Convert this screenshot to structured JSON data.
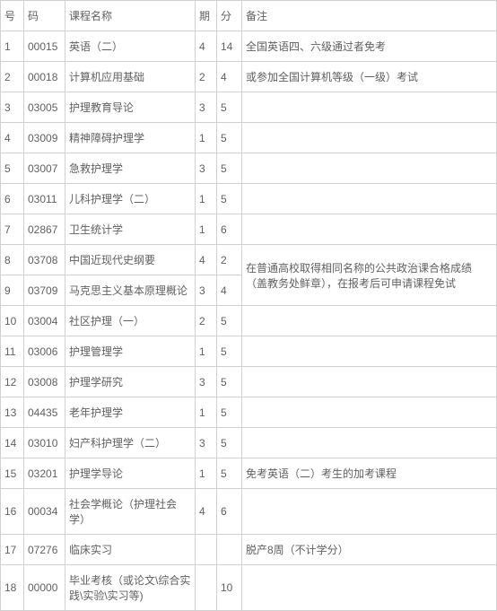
{
  "headers": {
    "seq": "号",
    "code": "码",
    "name": "课程名称",
    "period": "期",
    "credit": "分",
    "remark": "备注"
  },
  "rows": [
    {
      "seq": "1",
      "code": "00015",
      "name": "英语（二）",
      "period": "4",
      "credit": "14",
      "remark": "全国英语四、六级通过者免考"
    },
    {
      "seq": "2",
      "code": "00018",
      "name": "计算机应用基础",
      "period": "2",
      "credit": "4",
      "remark": "或参加全国计算机等级（一级）考试"
    },
    {
      "seq": "3",
      "code": "03005",
      "name": "护理教育导论",
      "period": "3",
      "credit": "5",
      "remark": ""
    },
    {
      "seq": "4",
      "code": "03009",
      "name": "精神障碍护理学",
      "period": "1",
      "credit": "5",
      "remark": ""
    },
    {
      "seq": "5",
      "code": "03007",
      "name": "急救护理学",
      "period": "3",
      "credit": "5",
      "remark": ""
    },
    {
      "seq": "6",
      "code": "03011",
      "name": "儿科护理学（二）",
      "period": "1",
      "credit": "5",
      "remark": ""
    },
    {
      "seq": "7",
      "code": "02867",
      "name": "卫生统计学",
      "period": "1",
      "credit": "6",
      "remark": ""
    },
    {
      "seq": "8",
      "code": "03708",
      "name": "中国近现代史纲要",
      "period": "4",
      "credit": "2",
      "remark": ""
    },
    {
      "seq": "9",
      "code": "03709",
      "name": "马克思主义基本原理概论",
      "period": "3",
      "credit": "4",
      "remark": ""
    },
    {
      "seq": "10",
      "code": "03004",
      "name": "社区护理（一）",
      "period": "2",
      "credit": "5",
      "remark": ""
    },
    {
      "seq": "11",
      "code": "03006",
      "name": "护理管理学",
      "period": "1",
      "credit": "5",
      "remark": ""
    },
    {
      "seq": "12",
      "code": "03008",
      "name": "护理学研究",
      "period": "3",
      "credit": "5",
      "remark": ""
    },
    {
      "seq": "13",
      "code": "04435",
      "name": "老年护理学",
      "period": "1",
      "credit": "5",
      "remark": ""
    },
    {
      "seq": "14",
      "code": "03010",
      "name": "妇产科护理学（二）",
      "period": "3",
      "credit": "5",
      "remark": ""
    },
    {
      "seq": "15",
      "code": "03201",
      "name": "护理学导论",
      "period": "1",
      "credit": "5",
      "remark": "免考英语（二）考生的加考课程"
    },
    {
      "seq": "16",
      "code": "00034",
      "name": "社会学概论（护理社会学）",
      "period": "4",
      "credit": "6",
      "remark": ""
    },
    {
      "seq": "17",
      "code": "07276",
      "name": "临床实习",
      "period": "",
      "credit": "",
      "remark": "脱产8周（不计学分）"
    },
    {
      "seq": "18",
      "code": "00000",
      "name": "毕业考核（或论文\\综合实践\\实验\\实习等)",
      "period": "",
      "credit": "10",
      "remark": ""
    }
  ],
  "merged_remark_8_9": "在普通高校取得相同名称的公共政治课合格成绩（盖教务处鲜章），在报考后可申请课程免试"
}
